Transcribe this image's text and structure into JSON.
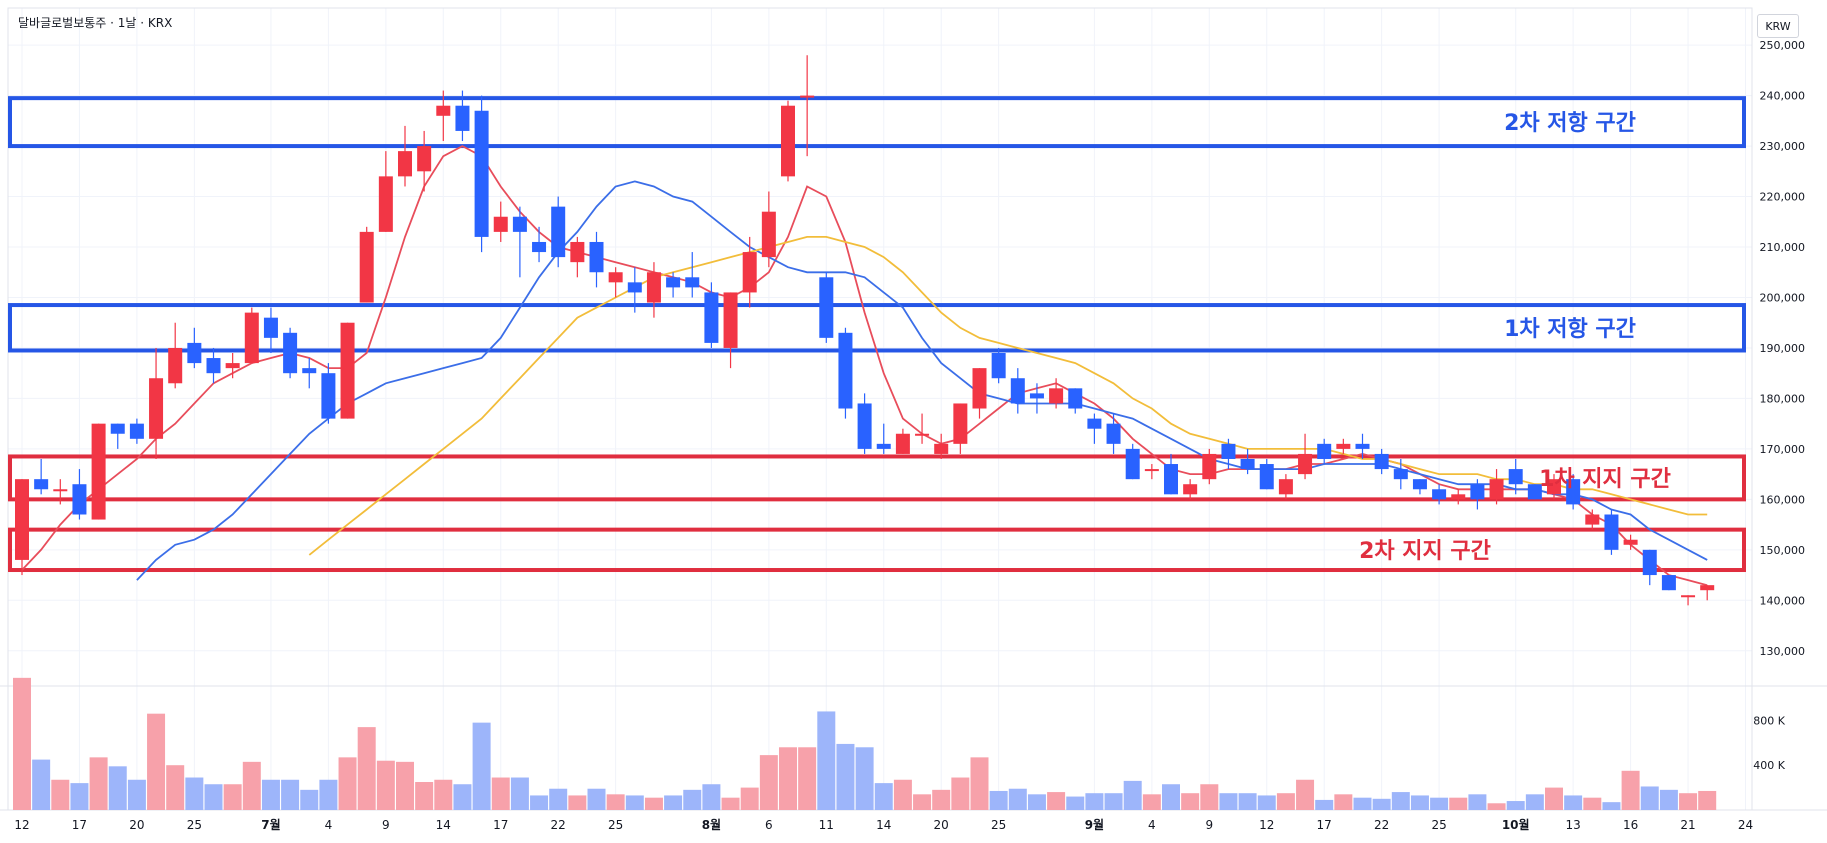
{
  "header": {
    "symbol_line": "달바글로벌보통주 · 1날 · KRX",
    "currency": "KRW"
  },
  "colors": {
    "up": "#f23645",
    "down": "#2962ff",
    "ma5": "#e84d5b",
    "ma10": "#3b6ee8",
    "ma20": "#f2bd3a",
    "resistance": "#2556e6",
    "support": "#e02e3f",
    "vol_up": "#f7a1aa",
    "vol_down": "#9db5fa"
  },
  "chart_data": {
    "type": "candlestick",
    "title": "",
    "ylim": [
      125000,
      253000
    ],
    "y_ticks": [
      {
        "value": 130000,
        "label": "130,000"
      },
      {
        "value": 140000,
        "label": "140,000"
      },
      {
        "value": 150000,
        "label": "150,000"
      },
      {
        "value": 160000,
        "label": "160,000"
      },
      {
        "value": 170000,
        "label": "170,000"
      },
      {
        "value": 180000,
        "label": "180,000"
      },
      {
        "value": 190000,
        "label": "190,000"
      },
      {
        "value": 200000,
        "label": "200,000"
      },
      {
        "value": 210000,
        "label": "210,000"
      },
      {
        "value": 220000,
        "label": "220,000"
      },
      {
        "value": 230000,
        "label": "230,000"
      },
      {
        "value": 240000,
        "label": "240,000"
      },
      {
        "value": 250000,
        "label": "250,000"
      }
    ],
    "volume_ticks": [
      {
        "value": 400000,
        "label": "400 K"
      },
      {
        "value": 800000,
        "label": "800 K"
      }
    ],
    "x_ticks": [
      {
        "index": 0,
        "label": "12"
      },
      {
        "index": 3,
        "label": "17"
      },
      {
        "index": 6,
        "label": "20"
      },
      {
        "index": 9,
        "label": "25"
      },
      {
        "index": 13,
        "label": "7월"
      },
      {
        "index": 16,
        "label": "4"
      },
      {
        "index": 19,
        "label": "9"
      },
      {
        "index": 22,
        "label": "14"
      },
      {
        "index": 25,
        "label": "17"
      },
      {
        "index": 28,
        "label": "22"
      },
      {
        "index": 31,
        "label": "25"
      },
      {
        "index": 36,
        "label": "8월"
      },
      {
        "index": 39,
        "label": "6"
      },
      {
        "index": 42,
        "label": "11"
      },
      {
        "index": 45,
        "label": "14"
      },
      {
        "index": 48,
        "label": "20"
      },
      {
        "index": 51,
        "label": "25"
      },
      {
        "index": 56,
        "label": "9월"
      },
      {
        "index": 59,
        "label": "4"
      },
      {
        "index": 62,
        "label": "9"
      },
      {
        "index": 65,
        "label": "12"
      },
      {
        "index": 68,
        "label": "17"
      },
      {
        "index": 71,
        "label": "22"
      },
      {
        "index": 74,
        "label": "25"
      },
      {
        "index": 78,
        "label": "10월"
      },
      {
        "index": 81,
        "label": "13"
      },
      {
        "index": 84,
        "label": "16"
      },
      {
        "index": 87,
        "label": "21"
      },
      {
        "index": 90,
        "label": "24"
      }
    ],
    "candles": [
      [
        148000,
        164000,
        145000,
        164000
      ],
      [
        164000,
        162000,
        161000,
        168000
      ],
      [
        162000,
        162000,
        159000,
        164000
      ],
      [
        163000,
        157000,
        156000,
        166000
      ],
      [
        156000,
        175000,
        156000,
        175000
      ],
      [
        175000,
        173000,
        170000,
        175000
      ],
      [
        175000,
        172000,
        171000,
        176000
      ],
      [
        172000,
        184000,
        168000,
        190000
      ],
      [
        183000,
        190000,
        182000,
        195000
      ],
      [
        191000,
        187000,
        186000,
        194000
      ],
      [
        188000,
        185000,
        183000,
        190000
      ],
      [
        186000,
        187000,
        184000,
        189000
      ],
      [
        187000,
        197000,
        187000,
        198000
      ],
      [
        196000,
        192000,
        189000,
        198000
      ],
      [
        193000,
        185000,
        184000,
        194000
      ],
      [
        186000,
        185000,
        182000,
        188000
      ],
      [
        185000,
        176000,
        175000,
        187000
      ],
      [
        176000,
        195000,
        176000,
        195000
      ],
      [
        199000,
        213000,
        199000,
        214000
      ],
      [
        213000,
        224000,
        213000,
        229000
      ],
      [
        224000,
        229000,
        222000,
        234000
      ],
      [
        225000,
        230000,
        221000,
        233000
      ],
      [
        236000,
        238000,
        231000,
        241000
      ],
      [
        238000,
        233000,
        231000,
        241000
      ],
      [
        237000,
        212000,
        209000,
        240000
      ],
      [
        213000,
        216000,
        211000,
        219000
      ],
      [
        216000,
        213000,
        204000,
        218000
      ],
      [
        211000,
        209000,
        207000,
        214000
      ],
      [
        218000,
        208000,
        206000,
        220000
      ],
      [
        207000,
        211000,
        204000,
        212000
      ],
      [
        211000,
        205000,
        202000,
        213000
      ],
      [
        203000,
        205000,
        200000,
        206000
      ],
      [
        203000,
        201000,
        197000,
        206000
      ],
      [
        199000,
        205000,
        196000,
        207000
      ],
      [
        204000,
        202000,
        200000,
        205000
      ],
      [
        204000,
        202000,
        200000,
        209000
      ],
      [
        201000,
        191000,
        190000,
        203000
      ],
      [
        190000,
        201000,
        186000,
        201000
      ],
      [
        201000,
        209000,
        198000,
        212000
      ],
      [
        208000,
        217000,
        206000,
        221000
      ],
      [
        224000,
        238000,
        223000,
        239000
      ],
      [
        240000,
        240000,
        228000,
        248000
      ],
      [
        204000,
        192000,
        191000,
        205000
      ],
      [
        193000,
        178000,
        176000,
        194000
      ],
      [
        179000,
        170000,
        169000,
        181000
      ],
      [
        171000,
        170000,
        169000,
        175000
      ],
      [
        169000,
        173000,
        169000,
        174000
      ],
      [
        173000,
        173000,
        171000,
        177000
      ],
      [
        169000,
        171000,
        168000,
        173000
      ],
      [
        171000,
        179000,
        169000,
        179000
      ],
      [
        178000,
        186000,
        176000,
        186000
      ],
      [
        189000,
        184000,
        183000,
        190000
      ],
      [
        184000,
        179000,
        177000,
        186000
      ],
      [
        181000,
        180000,
        177000,
        183000
      ],
      [
        179000,
        182000,
        178000,
        184000
      ],
      [
        182000,
        178000,
        177000,
        182000
      ],
      [
        176000,
        174000,
        171000,
        177000
      ],
      [
        175000,
        171000,
        169000,
        177000
      ],
      [
        170000,
        164000,
        164000,
        171000
      ],
      [
        166000,
        166000,
        164000,
        167000
      ],
      [
        167000,
        161000,
        161000,
        169000
      ],
      [
        161000,
        163000,
        160000,
        164000
      ],
      [
        164000,
        169000,
        163000,
        170000
      ],
      [
        171000,
        168000,
        166000,
        172000
      ],
      [
        168000,
        166000,
        165000,
        170000
      ],
      [
        167000,
        162000,
        162000,
        168000
      ],
      [
        161000,
        164000,
        160000,
        165000
      ],
      [
        165000,
        169000,
        164000,
        173000
      ],
      [
        171000,
        168000,
        167000,
        172000
      ],
      [
        170000,
        171000,
        169000,
        172000
      ],
      [
        171000,
        170000,
        168000,
        173000
      ],
      [
        169000,
        166000,
        165000,
        170000
      ],
      [
        166000,
        164000,
        162000,
        168000
      ],
      [
        164000,
        162000,
        161000,
        164000
      ],
      [
        162000,
        160000,
        159000,
        163000
      ],
      [
        160000,
        161000,
        159000,
        162000
      ],
      [
        163000,
        160000,
        158000,
        164000
      ],
      [
        160000,
        164000,
        159000,
        166000
      ],
      [
        166000,
        163000,
        161000,
        168000
      ],
      [
        163000,
        160000,
        160000,
        163000
      ],
      [
        161000,
        164000,
        160000,
        165000
      ],
      [
        164000,
        159000,
        158000,
        165000
      ],
      [
        155000,
        157000,
        154000,
        158000
      ],
      [
        157000,
        150000,
        149000,
        158000
      ],
      [
        151000,
        152000,
        150000,
        153000
      ],
      [
        150000,
        145000,
        143000,
        150000
      ],
      [
        145000,
        142000,
        142000,
        145000
      ],
      [
        141000,
        141000,
        139000,
        141000
      ],
      [
        142000,
        143000,
        140000,
        143000
      ]
    ],
    "volume": [
      1180000,
      450000,
      270000,
      240000,
      470000,
      390000,
      270000,
      860000,
      400000,
      290000,
      230000,
      230000,
      430000,
      270000,
      270000,
      180000,
      270000,
      470000,
      740000,
      440000,
      430000,
      250000,
      270000,
      230000,
      780000,
      290000,
      290000,
      130000,
      190000,
      130000,
      190000,
      140000,
      130000,
      110000,
      130000,
      180000,
      230000,
      110000,
      200000,
      490000,
      560000,
      560000,
      880000,
      590000,
      560000,
      240000,
      270000,
      140000,
      180000,
      290000,
      470000,
      170000,
      190000,
      140000,
      160000,
      120000,
      150000,
      150000,
      260000,
      140000,
      230000,
      150000,
      230000,
      150000,
      150000,
      130000,
      150000,
      270000,
      90000,
      140000,
      110000,
      100000,
      160000,
      130000,
      110000,
      110000,
      140000,
      60000,
      80000,
      140000,
      200000,
      130000,
      110000,
      70000,
      350000,
      210000,
      180000,
      150000,
      170000
    ],
    "series": [
      {
        "name": "MA5",
        "values": [
          146000,
          150000,
          155000,
          159000,
          162000,
          165000,
          168000,
          172000,
          175000,
          179000,
          183000,
          185000,
          187000,
          188000,
          189000,
          188000,
          186000,
          186000,
          189000,
          200000,
          212000,
          222000,
          228000,
          230000,
          228000,
          222000,
          217000,
          213000,
          210000,
          209000,
          208000,
          207000,
          206000,
          205000,
          204000,
          203000,
          201000,
          200000,
          202000,
          205000,
          212000,
          222000,
          220000,
          211000,
          197000,
          185000,
          176000,
          173000,
          171000,
          172000,
          175000,
          178000,
          181000,
          182000,
          183000,
          181000,
          179000,
          176000,
          172000,
          169000,
          166000,
          165000,
          165000,
          166000,
          166000,
          166000,
          166000,
          167000,
          167000,
          168000,
          169000,
          168000,
          167000,
          165000,
          163000,
          162000,
          162000,
          162000,
          162000,
          162000,
          161000,
          160000,
          157000,
          155000,
          151000,
          148000,
          145000,
          144000,
          143000
        ]
      },
      {
        "name": "MA10",
        "values": [
          null,
          null,
          null,
          null,
          null,
          null,
          144000,
          148000,
          151000,
          152000,
          154000,
          157000,
          161000,
          165000,
          169000,
          173000,
          176000,
          179000,
          181000,
          183000,
          184000,
          185000,
          186000,
          187000,
          188000,
          192000,
          198000,
          204000,
          209000,
          213000,
          218000,
          222000,
          223000,
          222000,
          220000,
          219000,
          216000,
          213000,
          210000,
          208000,
          206000,
          205000,
          205000,
          205000,
          204000,
          201000,
          198000,
          192000,
          187000,
          184000,
          181000,
          180000,
          179000,
          179000,
          179000,
          179000,
          178000,
          177000,
          176000,
          174000,
          172000,
          170000,
          168000,
          167000,
          166000,
          166000,
          166000,
          166000,
          167000,
          167000,
          167000,
          167000,
          166000,
          165000,
          164000,
          163000,
          163000,
          163000,
          162000,
          162000,
          161000,
          161000,
          160000,
          158000,
          157000,
          154000,
          152000,
          150000,
          148000
        ]
      },
      {
        "name": "MA20",
        "values": [
          null,
          null,
          null,
          null,
          null,
          null,
          null,
          null,
          null,
          null,
          null,
          null,
          null,
          null,
          null,
          149000,
          152000,
          155000,
          158000,
          161000,
          164000,
          167000,
          170000,
          173000,
          176000,
          180000,
          184000,
          188000,
          192000,
          196000,
          198000,
          200000,
          202000,
          204000,
          205000,
          206000,
          207000,
          208000,
          209000,
          210000,
          211000,
          212000,
          212000,
          211000,
          210000,
          208000,
          205000,
          201000,
          197000,
          194000,
          192000,
          191000,
          190000,
          189000,
          188000,
          187000,
          185000,
          183000,
          180000,
          178000,
          175000,
          173000,
          172000,
          171000,
          170000,
          170000,
          170000,
          170000,
          170000,
          169000,
          168000,
          168000,
          167000,
          166000,
          165000,
          165000,
          165000,
          164000,
          164000,
          163000,
          163000,
          162000,
          162000,
          161000,
          160000,
          159000,
          158000,
          157000,
          157000
        ]
      }
    ],
    "zones": [
      {
        "label": "2차 저항 구간",
        "low": 230000,
        "high": 239500,
        "kind": "resistance"
      },
      {
        "label": "1차 저항 구간",
        "low": 189500,
        "high": 198500,
        "kind": "resistance"
      },
      {
        "label": "1차 지지 구간",
        "low": 160000,
        "high": 168500,
        "kind": "support"
      },
      {
        "label": "2차 지지 구간",
        "low": 146000,
        "high": 154000,
        "kind": "support"
      }
    ]
  }
}
